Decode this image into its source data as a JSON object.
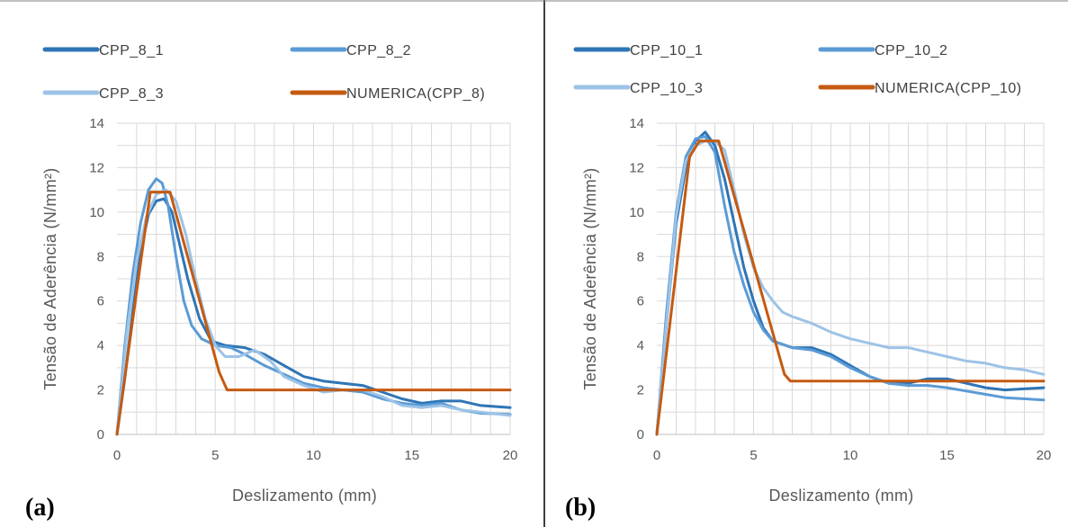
{
  "chart_data": [
    {
      "type": "line",
      "panel_label": "(a)",
      "title": "",
      "xlabel": "Deslizamento (mm)",
      "ylabel": "Tensão de Aderência (N/mm²)",
      "xlim": [
        0,
        20
      ],
      "ylim": [
        0,
        14
      ],
      "xticks": [
        "0",
        "5",
        "10",
        "15",
        "20"
      ],
      "yticks": [
        "0",
        "2",
        "4",
        "6",
        "8",
        "10",
        "12",
        "14"
      ],
      "grid": true,
      "legend_position": "top",
      "series": [
        {
          "name": "CPP_8_1",
          "color": "#2e75b6",
          "points": [
            [
              0,
              0
            ],
            [
              0.4,
              2.5
            ],
            [
              0.8,
              5.5
            ],
            [
              1.2,
              8.2
            ],
            [
              1.6,
              9.9
            ],
            [
              2,
              10.5
            ],
            [
              2.4,
              10.6
            ],
            [
              2.8,
              10
            ],
            [
              3.2,
              8.5
            ],
            [
              3.6,
              7
            ],
            [
              4.2,
              5.2
            ],
            [
              4.8,
              4.2
            ],
            [
              5.5,
              4
            ],
            [
              6.5,
              3.9
            ],
            [
              7.5,
              3.6
            ],
            [
              8.5,
              3.1
            ],
            [
              9.5,
              2.6
            ],
            [
              10.5,
              2.4
            ],
            [
              11.5,
              2.3
            ],
            [
              12.5,
              2.2
            ],
            [
              13.5,
              1.9
            ],
            [
              14.5,
              1.6
            ],
            [
              15.5,
              1.4
            ],
            [
              16.5,
              1.5
            ],
            [
              17.5,
              1.5
            ],
            [
              18.5,
              1.3
            ],
            [
              20,
              1.2
            ]
          ]
        },
        {
          "name": "CPP_8_2",
          "color": "#5b9bd5",
          "points": [
            [
              0,
              0
            ],
            [
              0.4,
              4
            ],
            [
              0.8,
              7.2
            ],
            [
              1.2,
              9.5
            ],
            [
              1.6,
              11
            ],
            [
              2,
              11.5
            ],
            [
              2.3,
              11.3
            ],
            [
              2.6,
              10.3
            ],
            [
              3,
              8
            ],
            [
              3.4,
              6
            ],
            [
              3.8,
              4.9
            ],
            [
              4.3,
              4.3
            ],
            [
              5,
              4
            ],
            [
              5.8,
              3.9
            ],
            [
              6.5,
              3.6
            ],
            [
              7.5,
              3.1
            ],
            [
              8.5,
              2.7
            ],
            [
              9.5,
              2.3
            ],
            [
              10.5,
              2.1
            ],
            [
              11.5,
              2
            ],
            [
              12.5,
              1.9
            ],
            [
              13.5,
              1.6
            ],
            [
              14.5,
              1.4
            ],
            [
              15.5,
              1.3
            ],
            [
              16.5,
              1.4
            ],
            [
              17.5,
              1.1
            ],
            [
              18.5,
              0.95
            ],
            [
              20,
              0.9
            ]
          ]
        },
        {
          "name": "CPP_8_3",
          "color": "#9dc3e6",
          "points": [
            [
              0,
              0
            ],
            [
              0.5,
              4.5
            ],
            [
              1,
              7.8
            ],
            [
              1.5,
              9.8
            ],
            [
              2,
              10.8
            ],
            [
              2.5,
              11
            ],
            [
              3,
              10.5
            ],
            [
              3.5,
              9
            ],
            [
              4,
              7
            ],
            [
              4.5,
              5.2
            ],
            [
              5,
              4
            ],
            [
              5.5,
              3.5
            ],
            [
              6.2,
              3.5
            ],
            [
              7,
              3.8
            ],
            [
              7.8,
              3.3
            ],
            [
              8.5,
              2.6
            ],
            [
              9.5,
              2.2
            ],
            [
              10.5,
              1.9
            ],
            [
              11.5,
              2
            ],
            [
              12.5,
              2
            ],
            [
              13.5,
              1.7
            ],
            [
              14.5,
              1.3
            ],
            [
              15.5,
              1.2
            ],
            [
              16.5,
              1.3
            ],
            [
              17.5,
              1.1
            ],
            [
              18.5,
              1
            ],
            [
              20,
              0.85
            ]
          ]
        },
        {
          "name": "NUMERICA(CPP_8)",
          "color": "#c55a11",
          "points": [
            [
              0,
              0
            ],
            [
              1.7,
              10.9
            ],
            [
              2.7,
              10.9
            ],
            [
              5.2,
              2.8
            ],
            [
              5.6,
              2
            ],
            [
              20,
              2
            ]
          ]
        }
      ]
    },
    {
      "type": "line",
      "panel_label": "(b)",
      "title": "",
      "xlabel": "Deslizamento (mm)",
      "ylabel": "Tensão de Aderência (N/mm²)",
      "xlim": [
        0,
        20
      ],
      "ylim": [
        0,
        14
      ],
      "xticks": [
        "0",
        "5",
        "10",
        "15",
        "20"
      ],
      "yticks": [
        "0",
        "2",
        "4",
        "6",
        "8",
        "10",
        "12",
        "14"
      ],
      "grid": true,
      "legend_position": "top",
      "series": [
        {
          "name": "CPP_10_1",
          "color": "#2e75b6",
          "points": [
            [
              0,
              0
            ],
            [
              0.5,
              5
            ],
            [
              1,
              9.5
            ],
            [
              1.5,
              12
            ],
            [
              2,
              13.2
            ],
            [
              2.5,
              13.6
            ],
            [
              3,
              13
            ],
            [
              3.5,
              11.5
            ],
            [
              4,
              9.5
            ],
            [
              4.5,
              7.5
            ],
            [
              5,
              6
            ],
            [
              5.5,
              4.8
            ],
            [
              6,
              4.2
            ],
            [
              7,
              3.9
            ],
            [
              8,
              3.9
            ],
            [
              9,
              3.6
            ],
            [
              10,
              3.1
            ],
            [
              11,
              2.6
            ],
            [
              12,
              2.3
            ],
            [
              13,
              2.3
            ],
            [
              14,
              2.5
            ],
            [
              15,
              2.5
            ],
            [
              16,
              2.3
            ],
            [
              17,
              2.1
            ],
            [
              18,
              2
            ],
            [
              20,
              2.1
            ]
          ]
        },
        {
          "name": "CPP_10_2",
          "color": "#5b9bd5",
          "points": [
            [
              0,
              0
            ],
            [
              0.5,
              5.5
            ],
            [
              1,
              10
            ],
            [
              1.5,
              12.5
            ],
            [
              2,
              13.3
            ],
            [
              2.5,
              13.4
            ],
            [
              3,
              12.7
            ],
            [
              3.5,
              10.3
            ],
            [
              4,
              8.2
            ],
            [
              4.5,
              6.7
            ],
            [
              5,
              5.5
            ],
            [
              5.5,
              4.7
            ],
            [
              6,
              4.2
            ],
            [
              7,
              3.9
            ],
            [
              8,
              3.8
            ],
            [
              9,
              3.5
            ],
            [
              10,
              3
            ],
            [
              11,
              2.6
            ],
            [
              12,
              2.3
            ],
            [
              13,
              2.2
            ],
            [
              14,
              2.2
            ],
            [
              15,
              2.1
            ],
            [
              16,
              1.95
            ],
            [
              17,
              1.8
            ],
            [
              18,
              1.65
            ],
            [
              20,
              1.55
            ]
          ]
        },
        {
          "name": "CPP_10_3",
          "color": "#9dc3e6",
          "points": [
            [
              0,
              0
            ],
            [
              0.5,
              5
            ],
            [
              1,
              9.8
            ],
            [
              1.5,
              12.3
            ],
            [
              2,
              13
            ],
            [
              2.5,
              13.2
            ],
            [
              3,
              13.2
            ],
            [
              3.5,
              12.8
            ],
            [
              4,
              11
            ],
            [
              4.5,
              9
            ],
            [
              5,
              7.5
            ],
            [
              5.5,
              6.6
            ],
            [
              6,
              6
            ],
            [
              6.5,
              5.5
            ],
            [
              7,
              5.3
            ],
            [
              8,
              5
            ],
            [
              9,
              4.6
            ],
            [
              10,
              4.3
            ],
            [
              11,
              4.1
            ],
            [
              12,
              3.9
            ],
            [
              13,
              3.9
            ],
            [
              14,
              3.7
            ],
            [
              15,
              3.5
            ],
            [
              16,
              3.3
            ],
            [
              17,
              3.2
            ],
            [
              18,
              3
            ],
            [
              19,
              2.9
            ],
            [
              20,
              2.7
            ]
          ]
        },
        {
          "name": "NUMERICA(CPP_10)",
          "color": "#c55a11",
          "points": [
            [
              0,
              0
            ],
            [
              1.7,
              12.5
            ],
            [
              2.2,
              13.2
            ],
            [
              3.2,
              13.2
            ],
            [
              6.6,
              2.7
            ],
            [
              6.9,
              2.4
            ],
            [
              20,
              2.4
            ]
          ]
        }
      ]
    }
  ]
}
